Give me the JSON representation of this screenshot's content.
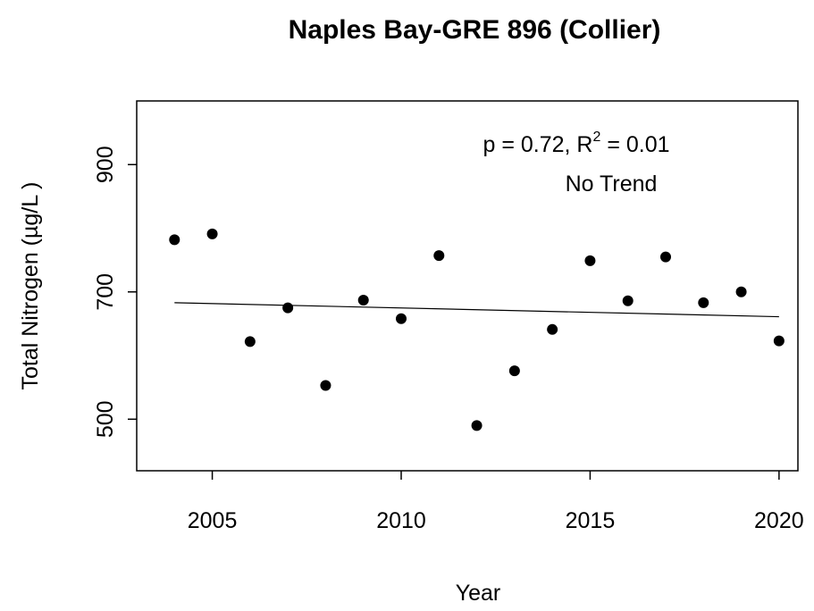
{
  "chart_data": {
    "type": "scatter",
    "title": "Naples Bay-GRE 896 (Collier)",
    "x_label": "Year",
    "y_label": "Total Nitrogen (µg/L )",
    "x": [
      2004,
      2005,
      2006,
      2007,
      2008,
      2009,
      2010,
      2011,
      2012,
      2013,
      2014,
      2015,
      2016,
      2017,
      2018,
      2019,
      2020
    ],
    "values": [
      782,
      791,
      622,
      675,
      553,
      687,
      658,
      757,
      490,
      576,
      641,
      749,
      686,
      755,
      683,
      700,
      623
    ],
    "color": "#000000",
    "trend": {
      "x": [
        2004,
        2020
      ],
      "values": [
        683,
        661
      ]
    },
    "annotation": {
      "stat": "p = 0.72, R",
      "sup": "2",
      "stat_end": " = 0.01",
      "trend_text": "No Trend"
    },
    "xlim": [
      2003,
      2020.5
    ],
    "xticks": [
      2005,
      2010,
      2015,
      2020
    ],
    "ylim": [
      419,
      1000
    ],
    "yticks": [
      500,
      700,
      900
    ],
    "grid": false
  }
}
